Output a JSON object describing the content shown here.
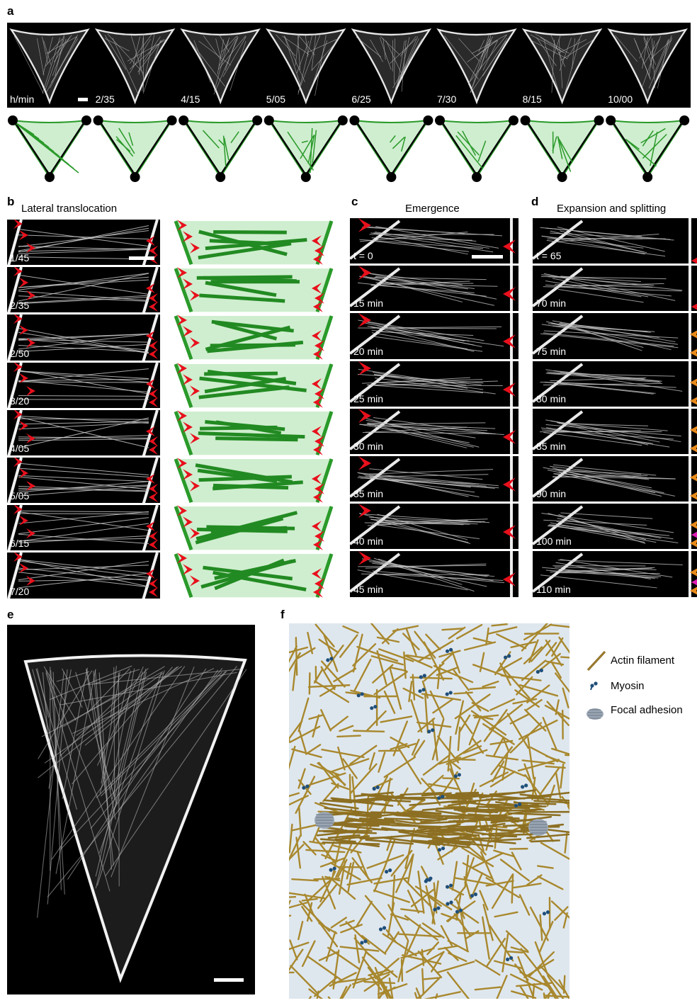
{
  "panel_labels": {
    "a": "a",
    "b": "b",
    "c": "c",
    "d": "d",
    "e": "e",
    "f": "f"
  },
  "panel_a": {
    "times": [
      "h/min",
      "2/35",
      "4/15",
      "5/05",
      "6/25",
      "7/30",
      "8/15",
      "10/00"
    ]
  },
  "panel_b": {
    "title": "Lateral translocation",
    "times": [
      "1/45",
      "2/35",
      "2/50",
      "3/20",
      "4/05",
      "5/05",
      "6/15",
      "7/20"
    ]
  },
  "panel_c": {
    "title": "Emergence",
    "times": [
      "t = 0",
      "15 min",
      "20 min",
      "25 min",
      "30 min",
      "35 min",
      "40 min",
      "45 min"
    ]
  },
  "panel_d": {
    "title": "Expansion and splitting",
    "times": [
      "t = 65",
      "70 min",
      "75 min",
      "80 min",
      "85 min",
      "90 min",
      "100 min",
      "110 min"
    ]
  },
  "legend": {
    "actin": "Actin filament",
    "myosin": "Myosin",
    "adhesion": "Focal adhesion"
  },
  "colors": {
    "arrow_red": "#e8101c",
    "arrow_orange": "#e88a1a",
    "arrow_magenta": "#e01ab4",
    "green": "#2a9a2a",
    "green_fill": "#cfeecf",
    "actin": "#a8882e",
    "myosin": "#1f4f7a",
    "adhesion": "#9aa6b4"
  }
}
